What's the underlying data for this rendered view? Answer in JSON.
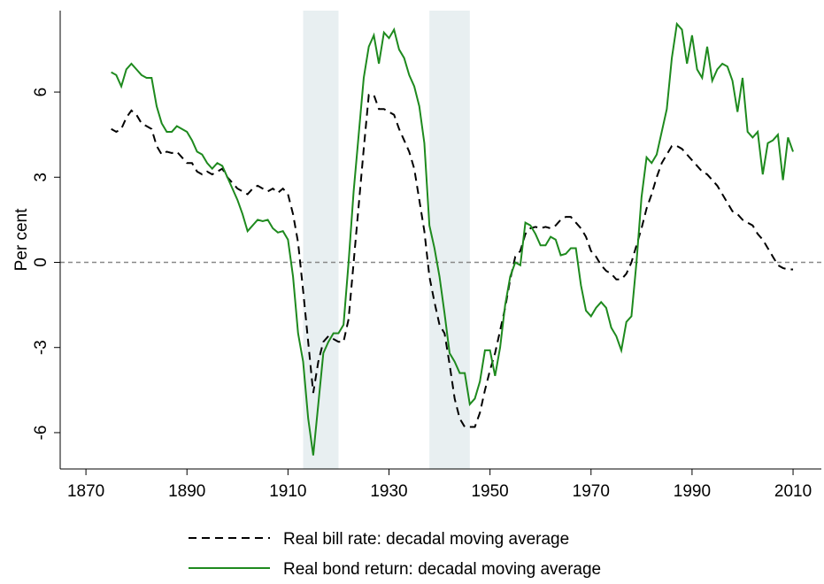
{
  "chart_data": {
    "type": "line",
    "y_label": "Per cent",
    "x": [
      1875,
      1876,
      1877,
      1878,
      1879,
      1880,
      1881,
      1882,
      1883,
      1884,
      1885,
      1886,
      1887,
      1888,
      1889,
      1890,
      1891,
      1892,
      1893,
      1894,
      1895,
      1896,
      1897,
      1898,
      1899,
      1900,
      1901,
      1902,
      1903,
      1904,
      1905,
      1906,
      1907,
      1908,
      1909,
      1910,
      1911,
      1912,
      1913,
      1914,
      1915,
      1916,
      1917,
      1918,
      1919,
      1920,
      1921,
      1922,
      1923,
      1924,
      1925,
      1926,
      1927,
      1928,
      1929,
      1930,
      1931,
      1932,
      1933,
      1934,
      1935,
      1936,
      1937,
      1938,
      1939,
      1940,
      1941,
      1942,
      1943,
      1944,
      1945,
      1946,
      1947,
      1948,
      1949,
      1950,
      1951,
      1952,
      1953,
      1954,
      1955,
      1956,
      1957,
      1958,
      1959,
      1960,
      1961,
      1962,
      1963,
      1964,
      1965,
      1966,
      1967,
      1968,
      1969,
      1970,
      1971,
      1972,
      1973,
      1974,
      1975,
      1976,
      1977,
      1978,
      1979,
      1980,
      1981,
      1982,
      1983,
      1984,
      1985,
      1986,
      1987,
      1988,
      1989,
      1990,
      1991,
      1992,
      1993,
      1994,
      1995,
      1996,
      1997,
      1998,
      1999,
      2000,
      2001,
      2002,
      2003,
      2004,
      2005,
      2006,
      2007,
      2008,
      2009,
      2010
    ],
    "series": [
      {
        "name": "Real bill rate: decadal moving average",
        "color": "#000000",
        "dash": "dashed",
        "values": [
          4.7,
          4.6,
          4.7,
          5.1,
          5.35,
          5.2,
          4.9,
          4.8,
          4.7,
          4.1,
          3.8,
          3.9,
          3.85,
          3.9,
          3.7,
          3.5,
          3.5,
          3.2,
          3.1,
          3.2,
          3.1,
          3.2,
          3.3,
          3.0,
          2.8,
          2.6,
          2.5,
          2.4,
          2.6,
          2.7,
          2.6,
          2.5,
          2.6,
          2.45,
          2.6,
          2.4,
          1.7,
          0.7,
          -1,
          -2.8,
          -4.6,
          -3.5,
          -2.8,
          -2.6,
          -2.7,
          -2.8,
          -2.8,
          -2.0,
          0,
          2,
          4,
          5.9,
          5.9,
          5.4,
          5.4,
          5.3,
          5.2,
          4.7,
          4.3,
          3.9,
          3.3,
          2.2,
          1.1,
          -0.5,
          -1.4,
          -2.2,
          -2.5,
          -3.6,
          -4.8,
          -5.5,
          -5.8,
          -5.8,
          -5.8,
          -5.3,
          -4.5,
          -3.8,
          -3.2,
          -2.4,
          -1.6,
          -0.6,
          0.2,
          0.4,
          1.0,
          1.2,
          1.25,
          1.2,
          1.25,
          1.2,
          1.3,
          1.5,
          1.6,
          1.6,
          1.4,
          1.2,
          0.9,
          0.4,
          0.2,
          -0.1,
          -0.3,
          -0.4,
          -0.6,
          -0.6,
          -0.4,
          0,
          0.6,
          1.2,
          1.9,
          2.4,
          3.0,
          3.5,
          3.8,
          4.1,
          4.1,
          4.0,
          3.8,
          3.6,
          3.4,
          3.2,
          3.1,
          2.9,
          2.7,
          2.4,
          2.1,
          1.8,
          1.7,
          1.5,
          1.4,
          1.3,
          1.0,
          0.8,
          0.5,
          0.2,
          -0.1,
          -0.2,
          -0.25,
          -0.25
        ]
      },
      {
        "name": "Real bond return: decadal moving average",
        "color": "#1e8a1e",
        "dash": "solid",
        "values": [
          6.7,
          6.6,
          6.2,
          6.8,
          7.0,
          6.8,
          6.6,
          6.5,
          6.5,
          5.5,
          4.9,
          4.6,
          4.6,
          4.8,
          4.7,
          4.6,
          4.3,
          3.9,
          3.8,
          3.5,
          3.3,
          3.5,
          3.4,
          3.0,
          2.6,
          2.2,
          1.7,
          1.1,
          1.3,
          1.5,
          1.45,
          1.5,
          1.2,
          1.05,
          1.1,
          0.8,
          -0.5,
          -2.5,
          -3.5,
          -5.5,
          -6.8,
          -5,
          -3.2,
          -2.8,
          -2.5,
          -2.5,
          -2.2,
          0,
          2.5,
          4.5,
          6.5,
          7.6,
          8.0,
          7.0,
          8.1,
          7.9,
          8.2,
          7.5,
          7.2,
          6.6,
          6.2,
          5.5,
          4.2,
          1.3,
          0.5,
          -0.5,
          -1.8,
          -3.2,
          -3.5,
          -3.9,
          -3.9,
          -5.0,
          -4.8,
          -4.2,
          -3.1,
          -3.1,
          -4.0,
          -3.0,
          -1.5,
          -0.5,
          0,
          -0.1,
          1.4,
          1.3,
          1.0,
          0.6,
          0.6,
          0.9,
          0.8,
          0.25,
          0.3,
          0.5,
          0.5,
          -0.8,
          -1.7,
          -1.9,
          -1.6,
          -1.4,
          -1.6,
          -2.3,
          -2.6,
          -3.1,
          -2.1,
          -1.9,
          0,
          2.3,
          3.7,
          3.5,
          3.8,
          4.6,
          5.4,
          7.2,
          8.4,
          8.2,
          7.0,
          8.0,
          6.8,
          6.5,
          7.6,
          6.4,
          6.8,
          7.0,
          6.9,
          6.4,
          5.3,
          6.5,
          4.6,
          4.4,
          4.6,
          3.1,
          4.2,
          4.3,
          4.5,
          2.9,
          4.4,
          3.9
        ]
      }
    ],
    "xlim": [
      1864.9,
      2015.6
    ],
    "xticks": [
      1870,
      1890,
      1910,
      1930,
      1950,
      1970,
      1990,
      2010
    ],
    "ylim": [
      -7.28,
      8.87
    ],
    "yticks": [
      -6,
      -3,
      0,
      3,
      6
    ],
    "reference_line": 0,
    "shaded_ranges": [
      [
        1913,
        1920
      ],
      [
        1938,
        1946
      ]
    ],
    "shade_color": "#e8eff1",
    "legend": "bottom"
  }
}
